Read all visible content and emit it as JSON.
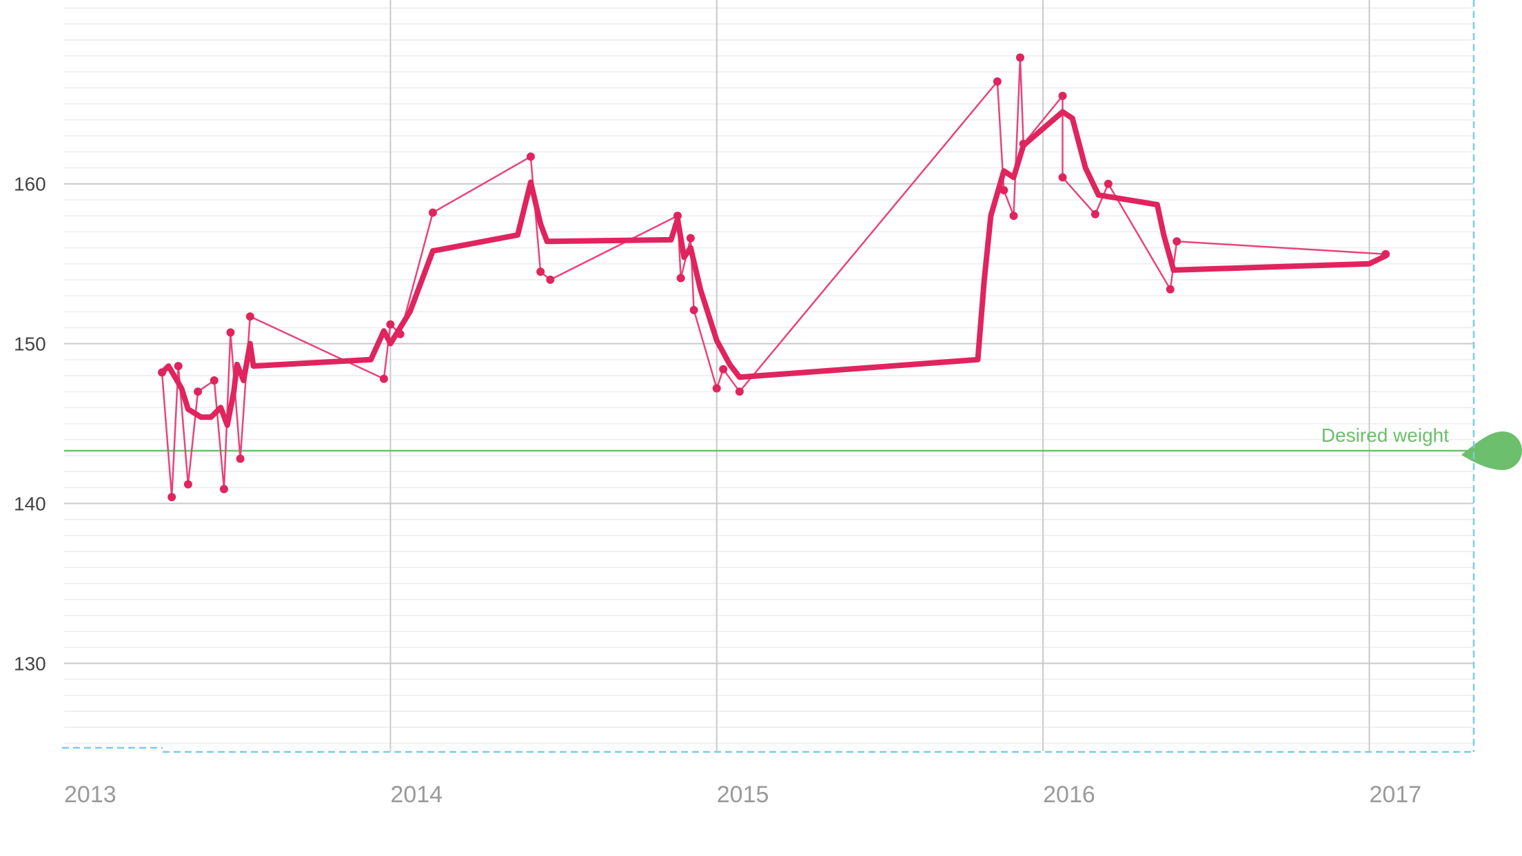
{
  "chart_data": {
    "type": "line",
    "x_ticks": [
      "2013",
      "2014",
      "2015",
      "2016",
      "2017"
    ],
    "y_ticks": [
      "130",
      "140",
      "150",
      "160"
    ],
    "xlim": [
      2013.0,
      2017.32
    ],
    "ylim": [
      124.5,
      171.5
    ],
    "y_grid_minor_step": 1,
    "grid": true,
    "target": {
      "label": "Desired weight",
      "value": 143.3,
      "color": "#6cbf6c"
    },
    "series": [
      {
        "role": "measurements",
        "color": "#e8447a",
        "points": [
          [
            2013.3,
            148.2
          ],
          [
            2013.33,
            140.4
          ],
          [
            2013.35,
            148.6
          ],
          [
            2013.38,
            141.2
          ],
          [
            2013.41,
            147.0
          ],
          [
            2013.46,
            147.7
          ],
          [
            2013.49,
            140.9
          ],
          [
            2013.51,
            150.7
          ],
          [
            2013.54,
            142.8
          ],
          [
            2013.57,
            151.7
          ],
          [
            2013.98,
            147.8
          ],
          [
            2014.0,
            151.2
          ],
          [
            2014.03,
            150.6
          ],
          [
            2014.13,
            158.2
          ],
          [
            2014.43,
            161.7
          ],
          [
            2014.46,
            154.5
          ],
          [
            2014.49,
            154.0
          ],
          [
            2014.88,
            158.0
          ],
          [
            2014.89,
            154.1
          ],
          [
            2014.92,
            156.6
          ],
          [
            2014.93,
            152.1
          ],
          [
            2015.0,
            147.2
          ],
          [
            2015.02,
            148.4
          ],
          [
            2015.07,
            147.0
          ],
          [
            2015.86,
            166.4
          ],
          [
            2015.88,
            159.6
          ],
          [
            2015.91,
            158.0
          ],
          [
            2015.93,
            167.9
          ],
          [
            2015.94,
            162.5
          ],
          [
            2016.06,
            165.5
          ],
          [
            2016.06,
            160.4
          ],
          [
            2016.16,
            158.1
          ],
          [
            2016.2,
            160.0
          ],
          [
            2016.39,
            153.4
          ],
          [
            2016.41,
            156.4
          ],
          [
            2017.05,
            155.6
          ]
        ]
      },
      {
        "role": "trend",
        "color": "#e0245e",
        "points": [
          [
            2013.3,
            148.2
          ],
          [
            2013.32,
            148.6
          ],
          [
            2013.34,
            147.9
          ],
          [
            2013.36,
            147.2
          ],
          [
            2013.38,
            145.9
          ],
          [
            2013.42,
            145.4
          ],
          [
            2013.45,
            145.4
          ],
          [
            2013.48,
            146.0
          ],
          [
            2013.5,
            144.9
          ],
          [
            2013.52,
            147.0
          ],
          [
            2013.53,
            148.7
          ],
          [
            2013.55,
            147.7
          ],
          [
            2013.57,
            150.0
          ],
          [
            2013.58,
            148.6
          ],
          [
            2013.94,
            149.0
          ],
          [
            2013.98,
            150.8
          ],
          [
            2014.0,
            150.0
          ],
          [
            2014.03,
            151.0
          ],
          [
            2014.06,
            152.0
          ],
          [
            2014.13,
            155.8
          ],
          [
            2014.39,
            156.8
          ],
          [
            2014.43,
            160.1
          ],
          [
            2014.46,
            157.5
          ],
          [
            2014.48,
            156.4
          ],
          [
            2014.86,
            156.5
          ],
          [
            2014.88,
            157.8
          ],
          [
            2014.9,
            155.4
          ],
          [
            2014.92,
            156.0
          ],
          [
            2014.95,
            153.4
          ],
          [
            2015.0,
            150.2
          ],
          [
            2015.04,
            148.7
          ],
          [
            2015.07,
            147.9
          ],
          [
            2015.8,
            149.0
          ],
          [
            2015.82,
            154.0
          ],
          [
            2015.84,
            158.0
          ],
          [
            2015.88,
            160.8
          ],
          [
            2015.91,
            160.4
          ],
          [
            2015.94,
            162.4
          ],
          [
            2016.06,
            164.5
          ],
          [
            2016.09,
            164.1
          ],
          [
            2016.13,
            161.0
          ],
          [
            2016.17,
            159.3
          ],
          [
            2016.35,
            158.7
          ],
          [
            2016.37,
            156.8
          ],
          [
            2016.4,
            154.6
          ],
          [
            2017.0,
            155.0
          ],
          [
            2017.05,
            155.5
          ]
        ]
      }
    ]
  }
}
